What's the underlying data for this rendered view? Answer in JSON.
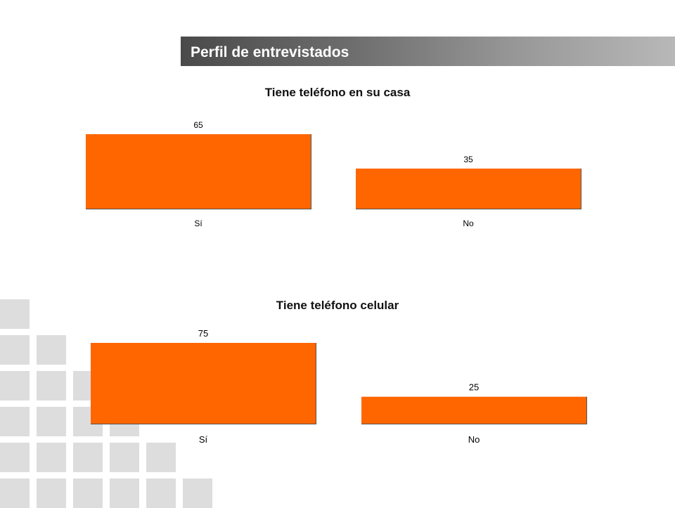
{
  "header": {
    "title": "Perfil de entrevistados"
  },
  "colors": {
    "bar": "#ff6600",
    "bar_shadow": "#555555",
    "decor": "#dddddd"
  },
  "chart_data": [
    {
      "type": "bar",
      "title": "Tiene teléfono en su casa",
      "categories": [
        "Sí",
        "No"
      ],
      "values": [
        65,
        35
      ],
      "ylim": [
        0,
        65
      ],
      "xlabel": "",
      "ylabel": "",
      "grid": false
    },
    {
      "type": "bar",
      "title": "Tiene teléfono celular",
      "categories": [
        "Sí",
        "No"
      ],
      "values": [
        75,
        25
      ],
      "ylim": [
        0,
        75
      ],
      "xlabel": "",
      "ylabel": "",
      "grid": false
    }
  ]
}
